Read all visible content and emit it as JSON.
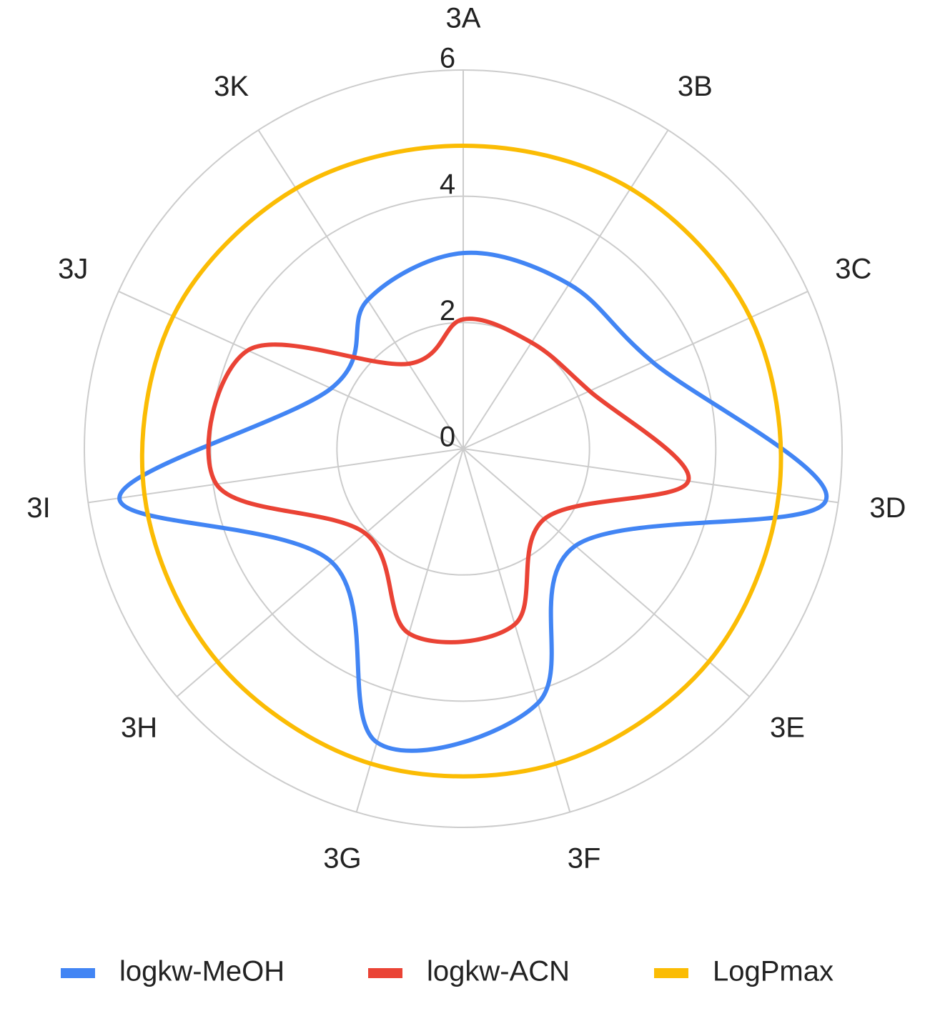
{
  "chart_data": {
    "type": "radar",
    "categories": [
      "3A",
      "3B",
      "3C",
      "3D",
      "3E",
      "3F",
      "3G",
      "3H",
      "3I",
      "3J",
      "3K"
    ],
    "series": [
      {
        "name": "logkw-MeOH",
        "color": "#4285f4",
        "values": [
          3.1,
          3.1,
          3.3,
          5.8,
          2.35,
          4.2,
          4.85,
          2.75,
          5.5,
          2.3,
          2.8
        ]
      },
      {
        "name": "logkw-ACN",
        "color": "#ea4335",
        "values": [
          2.05,
          2.0,
          2.2,
          3.6,
          1.7,
          2.9,
          3.05,
          2.05,
          3.95,
          3.75,
          1.6
        ]
      },
      {
        "name": "LogPmax",
        "color": "#fbbc04",
        "values": [
          4.8,
          4.9,
          5.0,
          5.05,
          5.15,
          5.2,
          5.2,
          5.15,
          5.1,
          5.05,
          4.9
        ]
      }
    ],
    "ylim": [
      0,
      6
    ],
    "yticks": [
      0,
      2,
      4,
      6
    ],
    "grid": true,
    "legend": "bottom"
  }
}
